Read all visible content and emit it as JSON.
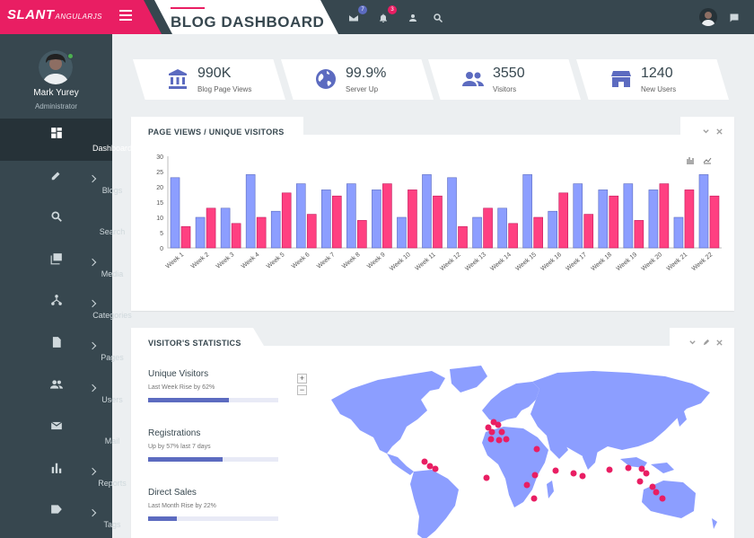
{
  "brand": {
    "name": "SLANT",
    "sub": "ANGULARJS"
  },
  "header": {
    "title": "BLOG DASHBOARD",
    "messages_badge": "7",
    "notifications_badge": "3"
  },
  "profile": {
    "name": "Mark Yurey",
    "role": "Administrator"
  },
  "sidebar": {
    "items": [
      {
        "label": "Dashboard",
        "icon": "dashboard-icon",
        "active": true,
        "has_sub": false
      },
      {
        "label": "Blogs",
        "icon": "pencil-icon",
        "has_sub": true
      },
      {
        "label": "Search",
        "icon": "search-icon",
        "has_sub": false
      },
      {
        "label": "Media",
        "icon": "photo-library-icon",
        "has_sub": true
      },
      {
        "label": "Categories",
        "icon": "hierarchy-icon",
        "has_sub": true
      },
      {
        "label": "Pages",
        "icon": "page-icon",
        "has_sub": true
      },
      {
        "label": "Users",
        "icon": "users-icon",
        "has_sub": true
      },
      {
        "label": "Mail",
        "icon": "mail-icon",
        "has_sub": false
      },
      {
        "label": "Reports",
        "icon": "bar-chart-icon",
        "has_sub": true
      },
      {
        "label": "Tags",
        "icon": "tag-icon",
        "has_sub": true
      }
    ]
  },
  "stats": [
    {
      "value": "990K",
      "label": "Blog Page Views",
      "icon": "bank-icon"
    },
    {
      "value": "99.9%",
      "label": "Server Up",
      "icon": "globe-icon"
    },
    {
      "value": "3550",
      "label": "Visitors",
      "icon": "people-icon"
    },
    {
      "value": "1240",
      "label": "New Users",
      "icon": "store-icon"
    }
  ],
  "chart_panel": {
    "title": "PAGE VIEWS / UNIQUE VISITORS"
  },
  "stats_panel": {
    "title": "VISITOR'S STATISTICS",
    "rows": [
      {
        "title": "Unique Visitors",
        "sub": "Last Week Rise by 62%",
        "progress": 0.62
      },
      {
        "title": "Registrations",
        "sub": "Up by 57% last 7 days",
        "progress": 0.57
      },
      {
        "title": "Direct Sales",
        "sub": "Last Month Rise by 22%",
        "progress": 0.22
      }
    ]
  },
  "colors": {
    "brand": "#e91e63",
    "blue": "#8c9eff",
    "red": "#ff4081",
    "dark": "#37474f"
  },
  "chart_data": {
    "type": "bar",
    "categories": [
      "Week 1",
      "Week 2",
      "Week 3",
      "Week 4",
      "Week 5",
      "Week 6",
      "Week 7",
      "Week 8",
      "Week 9",
      "Week 10",
      "Week 11",
      "Week 12",
      "Week 13",
      "Week 14",
      "Week 15",
      "Week 16",
      "Week 17",
      "Week 18",
      "Week 19",
      "Week 20",
      "Week 21",
      "Week 22"
    ],
    "series": [
      {
        "values": [
          23,
          10,
          13,
          24,
          12,
          21,
          19,
          21,
          19,
          10,
          24,
          23,
          10,
          13,
          24,
          12,
          21,
          19,
          21,
          19,
          10,
          24
        ],
        "color": "#8c9eff"
      },
      {
        "values": [
          7,
          13,
          8,
          10,
          18,
          11,
          17,
          9,
          21,
          19,
          17,
          7,
          13,
          8,
          10,
          18,
          11,
          17,
          9,
          21,
          19,
          17
        ],
        "color": "#ff4081"
      }
    ],
    "ylim": [
      0,
      30
    ],
    "yticks": [
      0,
      5,
      10,
      15,
      20,
      25,
      30
    ],
    "grid": false
  }
}
